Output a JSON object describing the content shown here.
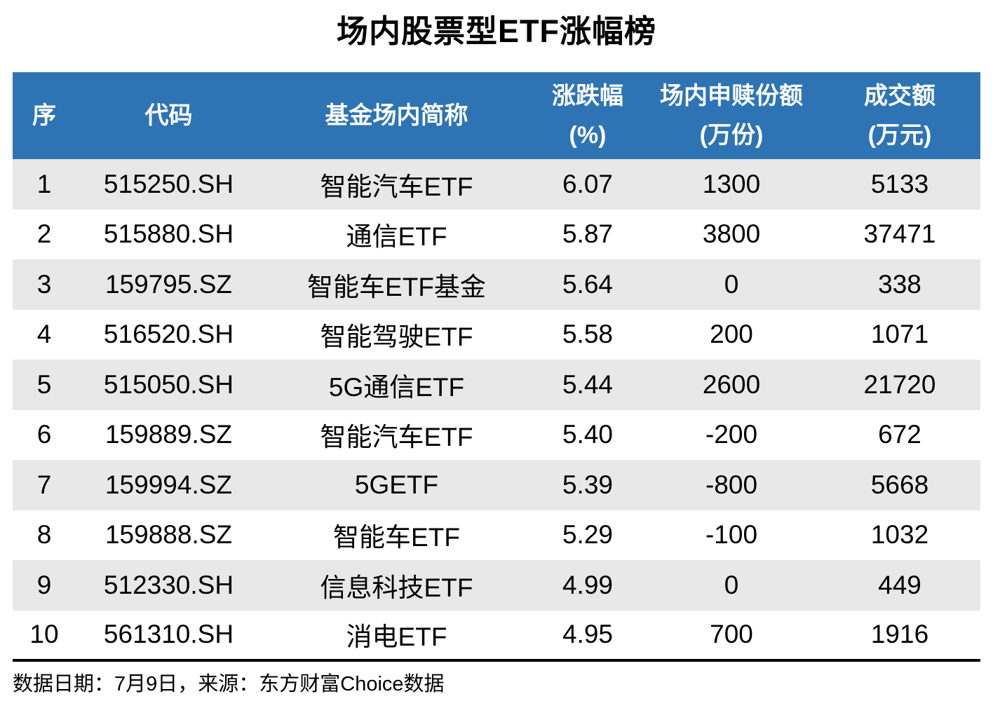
{
  "title": "场内股票型ETF涨幅榜",
  "chart_data": {
    "type": "table",
    "title": "场内股票型ETF涨幅榜",
    "columns": [
      {
        "label": "序",
        "sub": ""
      },
      {
        "label": "代码",
        "sub": ""
      },
      {
        "label": "基金场内简称",
        "sub": ""
      },
      {
        "label": "涨跌幅",
        "sub": "(%)"
      },
      {
        "label": "场内申赎份额",
        "sub": "(万份)"
      },
      {
        "label": "成交额",
        "sub": "(万元)"
      }
    ],
    "rows": [
      [
        "1",
        "515250.SH",
        "智能汽车ETF",
        "6.07",
        "1300",
        "5133"
      ],
      [
        "2",
        "515880.SH",
        "通信ETF",
        "5.87",
        "3800",
        "37471"
      ],
      [
        "3",
        "159795.SZ",
        "智能车ETF基金",
        "5.64",
        "0",
        "338"
      ],
      [
        "4",
        "516520.SH",
        "智能驾驶ETF",
        "5.58",
        "200",
        "1071"
      ],
      [
        "5",
        "515050.SH",
        "5G通信ETF",
        "5.44",
        "2600",
        "21720"
      ],
      [
        "6",
        "159889.SZ",
        "智能汽车ETF",
        "5.40",
        "-200",
        "672"
      ],
      [
        "7",
        "159994.SZ",
        "5GETF",
        "5.39",
        "-800",
        "5668"
      ],
      [
        "8",
        "159888.SZ",
        "智能车ETF",
        "5.29",
        "-100",
        "1032"
      ],
      [
        "9",
        "512330.SH",
        "信息科技ETF",
        "4.99",
        "0",
        "449"
      ],
      [
        "10",
        "561310.SH",
        "消电ETF",
        "4.95",
        "700",
        "1916"
      ]
    ]
  },
  "footer": {
    "note": "数据日期：7月9日，来源：东方财富Choice数据"
  },
  "colors": {
    "header_bg": "#2E74B5",
    "header_text": "#FFFFFF",
    "row_stripe": "#E9E8E8",
    "row_plain": "#FFFFFF",
    "rule": "#000000"
  }
}
